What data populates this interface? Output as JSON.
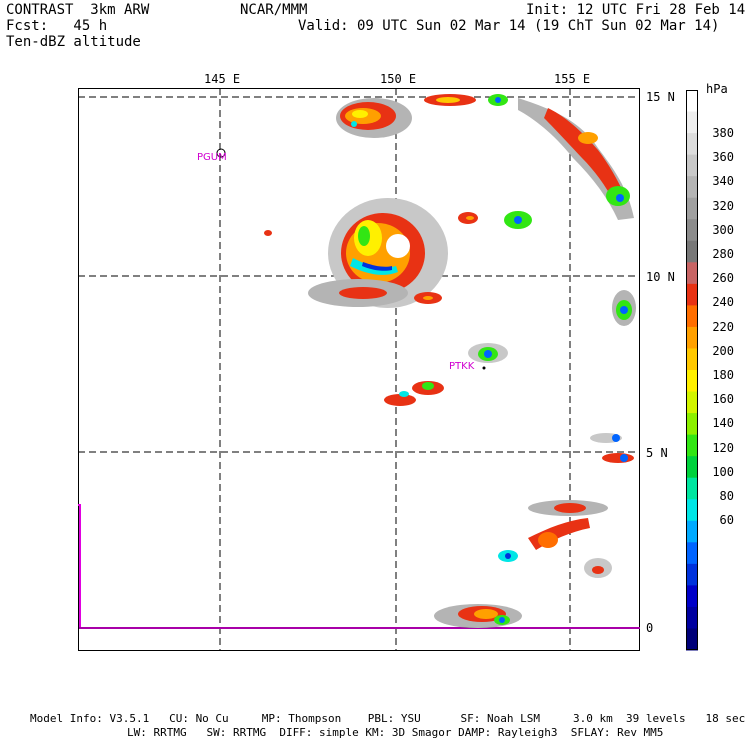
{
  "header": {
    "line1_left": "CONTRAST  3km ARW",
    "line1_center": "NCAR/MMM",
    "line1_right": "Init: 12 UTC Fri 28 Feb 14",
    "line2_left": "Fcst:   45 h",
    "line2_right": "Valid: 09 UTC Sun 02 Mar 14 (19 ChT Sun 02 Mar 14)",
    "line3_left": "Ten-dBZ altitude"
  },
  "map": {
    "lon_labels": [
      "145 E",
      "150 E",
      "155 E"
    ],
    "lat_labels": [
      "15 N",
      "10 N",
      "5 N",
      "0"
    ],
    "stations": [
      "PGUM",
      "PTKK"
    ]
  },
  "colorbar": {
    "unit": "hPa",
    "labels": [
      "380",
      "360",
      "340",
      "320",
      "300",
      "280",
      "260",
      "240",
      "220",
      "200",
      "180",
      "160",
      "140",
      "120",
      "100",
      "80",
      "60"
    ],
    "colors": [
      "#ffffff",
      "#eeeeee",
      "#dcdcdc",
      "#c8c8c8",
      "#b4b4b4",
      "#a0a0a0",
      "#8c8c8c",
      "#787878",
      "#c86464",
      "#e83214",
      "#ff6e00",
      "#ffa000",
      "#ffc800",
      "#fff000",
      "#d2f500",
      "#8cf000",
      "#32e614",
      "#00d23c",
      "#00e6a0",
      "#00e6e6",
      "#00aaff",
      "#0064ff",
      "#0032dc",
      "#0000c8",
      "#0000a0",
      "#000078"
    ]
  },
  "footer": {
    "line1": "Model Info: V3.5.1   CU: No Cu     MP: Thompson    PBL: YSU      SF: Noah LSM     3.0 km  39 levels   18 sec",
    "line2": "LW: RRTMG   SW: RRTMG  DIFF: simple KM: 3D Smagor DAMP: Rayleigh3  SFLAY: Rev MM5"
  }
}
